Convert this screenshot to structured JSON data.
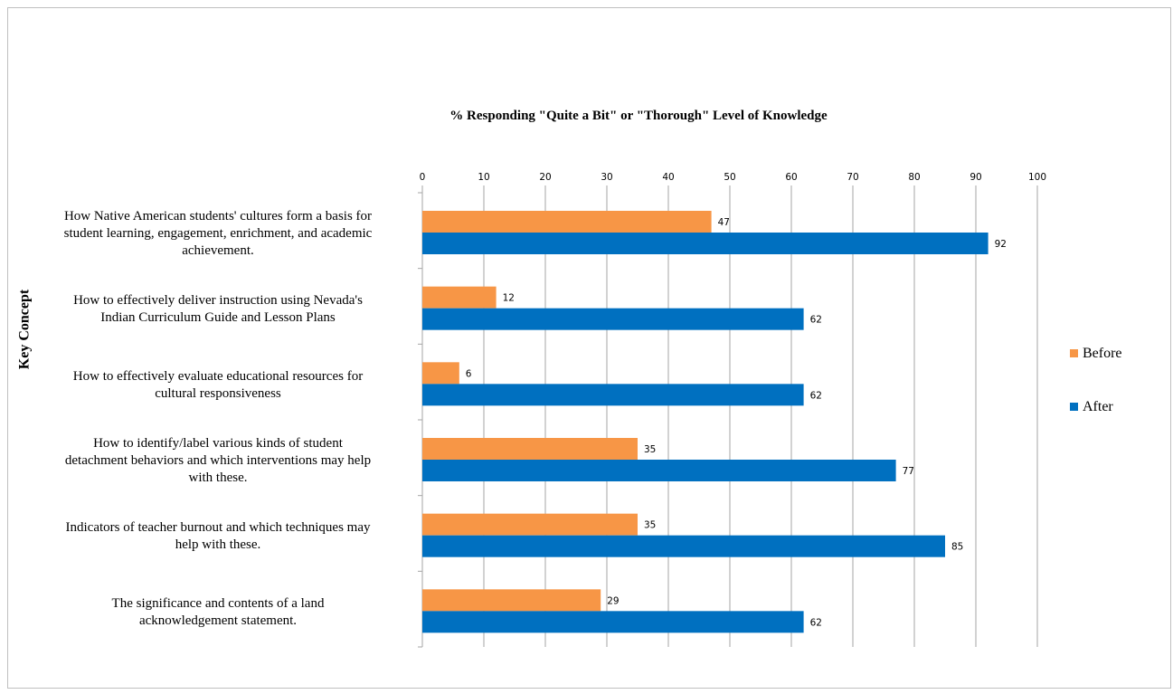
{
  "chart_data": {
    "type": "bar",
    "orientation": "horizontal",
    "title": "% Responding \"Quite a Bit\" or \"Thorough\" Level of Knowledge",
    "ylabel": "Key Concept",
    "xlim": [
      0,
      100
    ],
    "xticks": [
      0,
      10,
      20,
      30,
      40,
      50,
      60,
      70,
      80,
      90,
      100
    ],
    "grid": true,
    "legend_position": "right",
    "categories": [
      [
        "How Native American students' cultures form a basis for",
        "student learning, engagement, enrichment, and academic",
        "achievement."
      ],
      [
        "How to effectively deliver instruction using Nevada's",
        "Indian Curriculum Guide and Lesson Plans"
      ],
      [
        "How to effectively evaluate educational resources for",
        "cultural responsiveness"
      ],
      [
        "How to identify/label various kinds of student",
        "detachment behaviors and which interventions may help",
        "with these."
      ],
      [
        "Indicators of teacher burnout and which techniques may",
        "help with these."
      ],
      [
        "The significance and contents of a land",
        "acknowledgement statement."
      ]
    ],
    "series": [
      {
        "name": "Before",
        "color": "#f79646",
        "values": [
          47,
          12,
          6,
          35,
          35,
          29
        ]
      },
      {
        "name": "After",
        "color": "#0070c0",
        "values": [
          92,
          62,
          62,
          77,
          85,
          62
        ]
      }
    ]
  }
}
